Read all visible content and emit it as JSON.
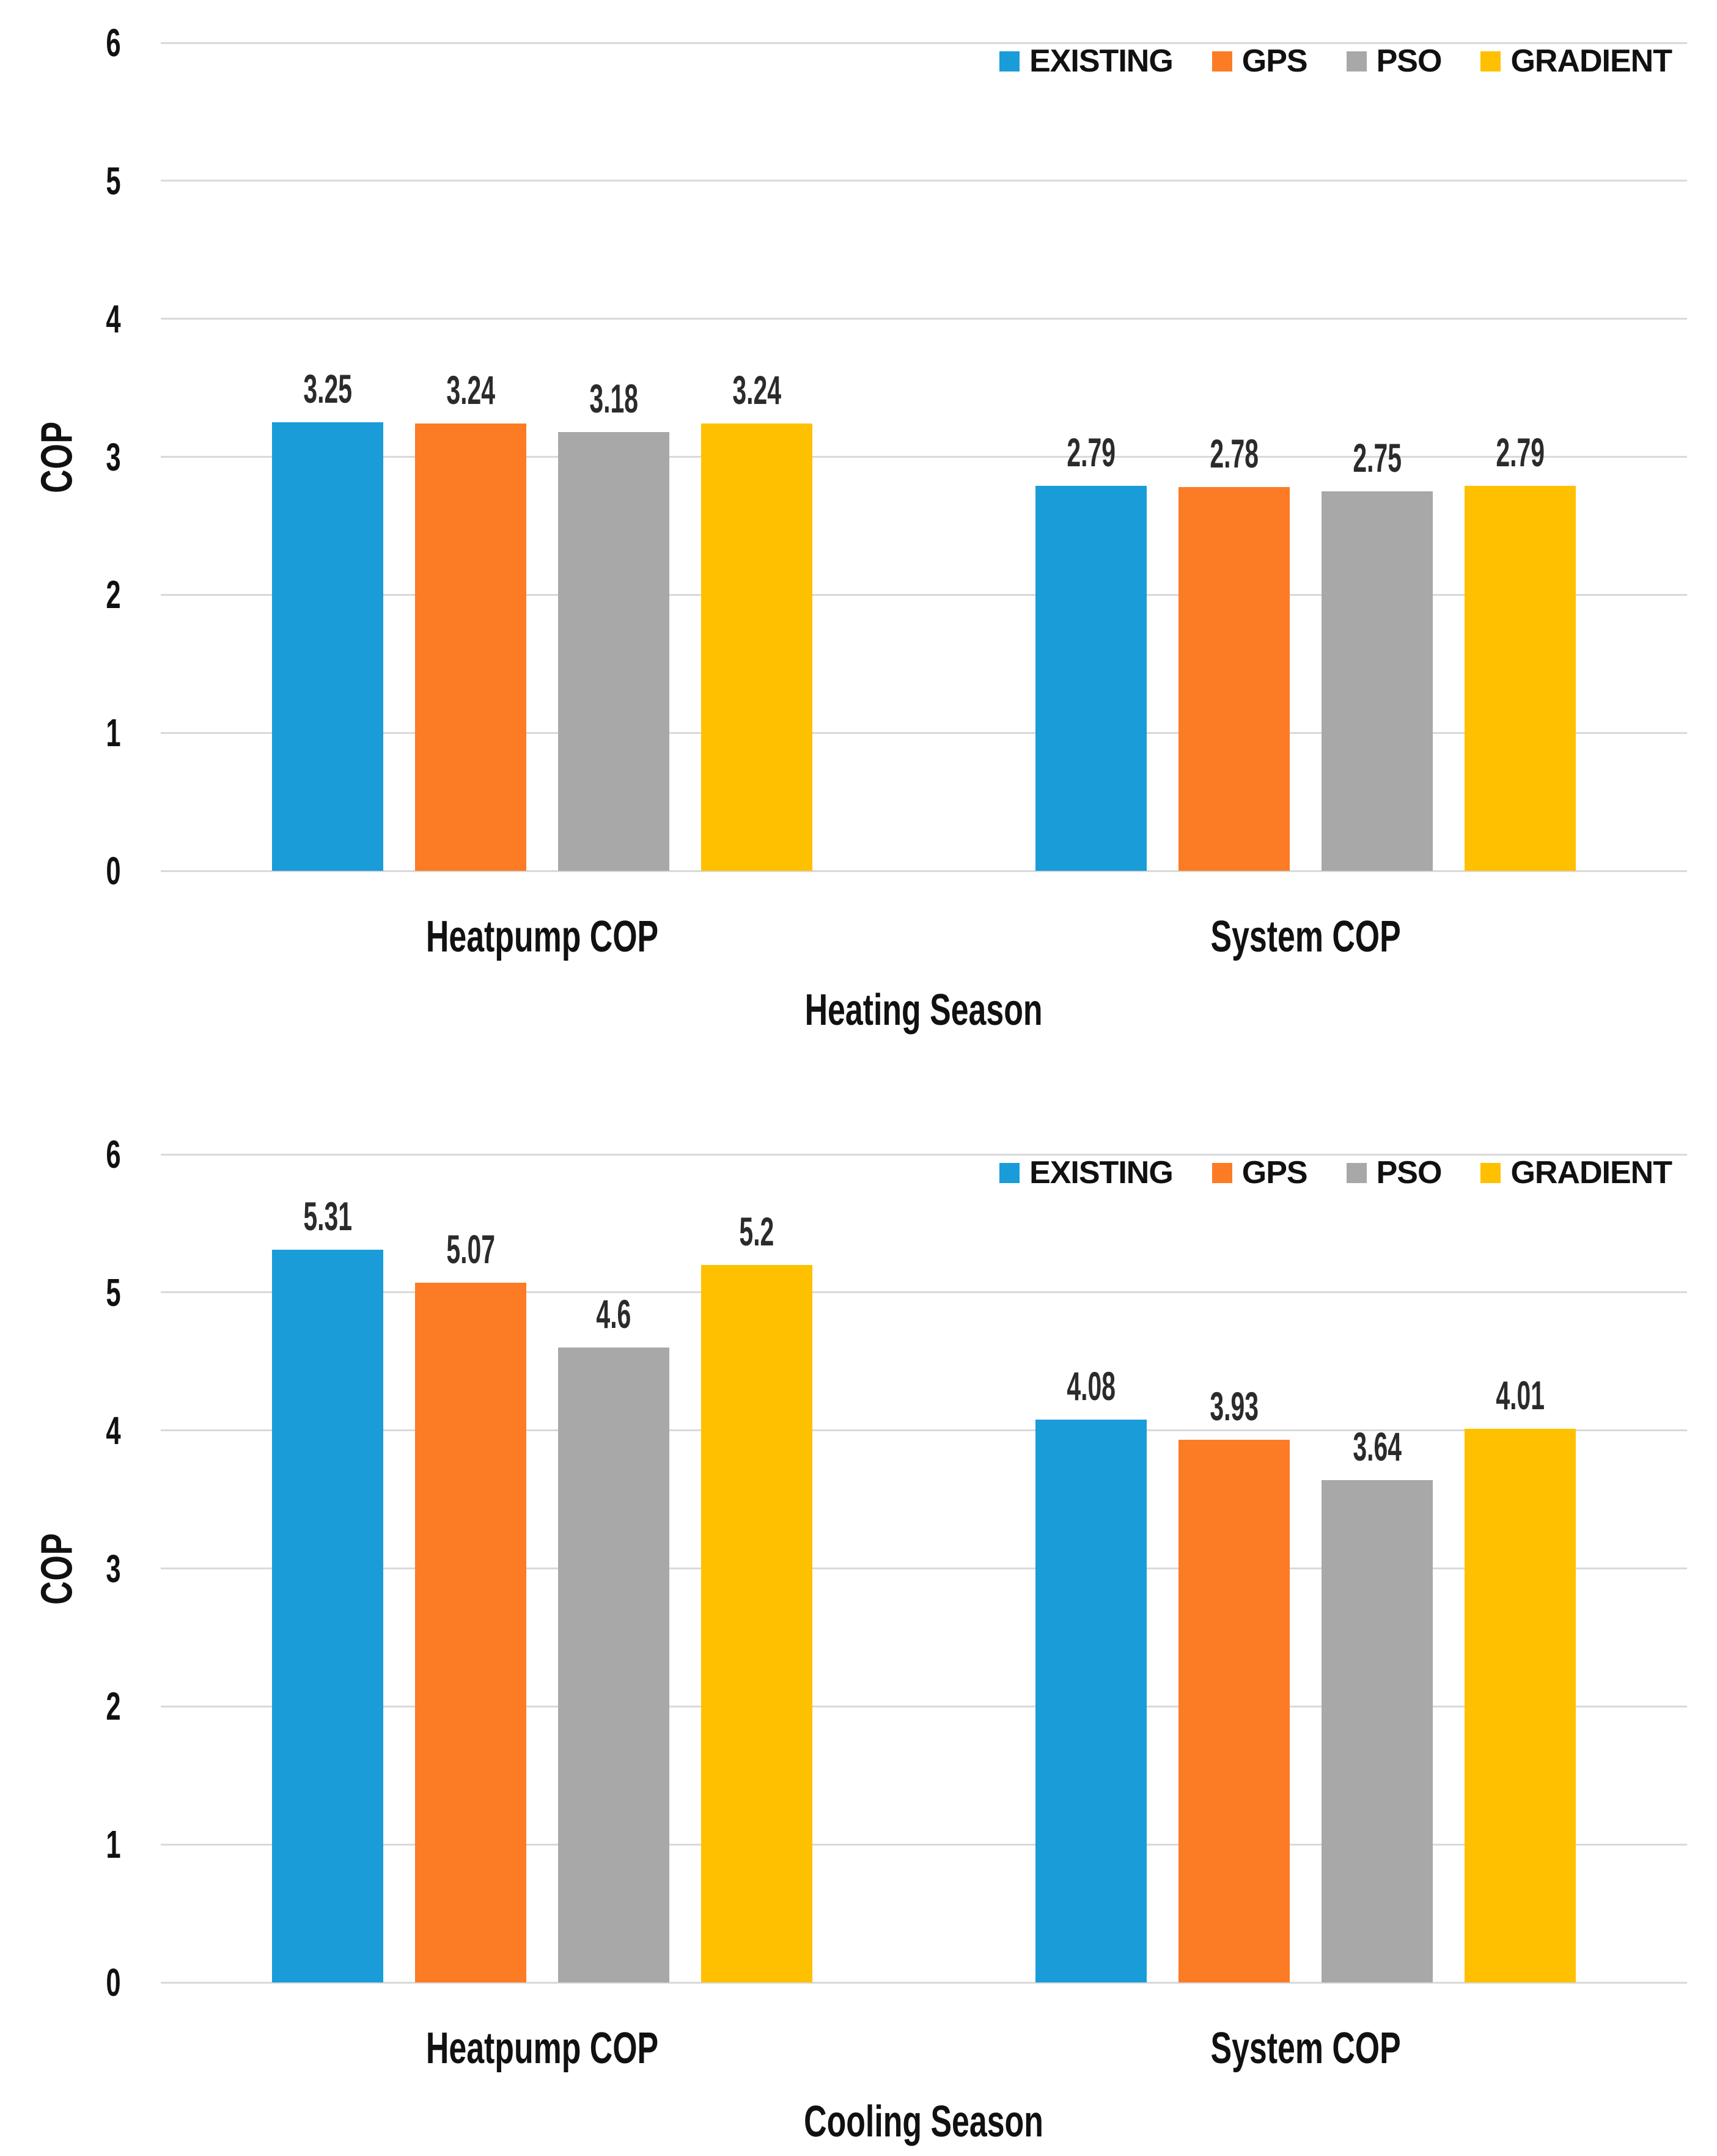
{
  "figure": {
    "y_axis_title": "COP",
    "y_ticks": [
      6,
      5,
      4,
      3,
      2,
      1,
      0
    ],
    "colors": {
      "existing": "#1A9CD8",
      "gps": "#FC7B25",
      "pso": "#A8A8A8",
      "gradient": "#FFC000",
      "gridline": "#D9D9D9",
      "label_text": "#2B2B2B"
    }
  },
  "chart_data": [
    {
      "type": "bar",
      "title": "Heating Season",
      "ylabel": "COP",
      "xlabel": "",
      "ylim": [
        0,
        6
      ],
      "grid": true,
      "legend_position": "top-right",
      "categories": [
        "Heatpump COP",
        "System COP"
      ],
      "series": [
        {
          "name": "EXISTING",
          "color": "#1A9CD8",
          "values": [
            3.25,
            2.79
          ]
        },
        {
          "name": "GPS",
          "color": "#FC7B25",
          "values": [
            3.24,
            2.78
          ]
        },
        {
          "name": "PSO",
          "color": "#A8A8A8",
          "values": [
            3.18,
            2.75
          ]
        },
        {
          "name": "GRADIENT",
          "color": "#FFC000",
          "values": [
            3.24,
            2.79
          ]
        }
      ],
      "data_labels": [
        [
          "3.25",
          "3.24",
          "3.18",
          "3.24"
        ],
        [
          "2.79",
          "2.78",
          "2.75",
          "2.79"
        ]
      ]
    },
    {
      "type": "bar",
      "title": "Cooling Season",
      "ylabel": "COP",
      "xlabel": "",
      "ylim": [
        0,
        6
      ],
      "grid": true,
      "legend_position": "top-right",
      "categories": [
        "Heatpump COP",
        "System COP"
      ],
      "series": [
        {
          "name": "EXISTING",
          "color": "#1A9CD8",
          "values": [
            5.31,
            4.08
          ]
        },
        {
          "name": "GPS",
          "color": "#FC7B25",
          "values": [
            5.07,
            3.93
          ]
        },
        {
          "name": "PSO",
          "color": "#A8A8A8",
          "values": [
            4.6,
            3.64
          ]
        },
        {
          "name": "GRADIENT",
          "color": "#FFC000",
          "values": [
            5.2,
            4.01
          ]
        }
      ],
      "data_labels": [
        [
          "5.31",
          "5.07",
          "4.6",
          "5.2"
        ],
        [
          "4.08",
          "3.93",
          "3.64",
          "4.01"
        ]
      ]
    }
  ]
}
